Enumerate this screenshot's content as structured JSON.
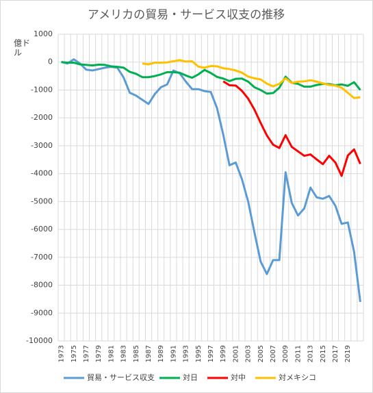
{
  "chart_data": {
    "type": "line",
    "title": "アメリカの貿易・サービス収支の推移",
    "y_label": "億ドル",
    "categories": [
      "1973",
      null,
      "1975",
      null,
      "1977",
      null,
      "1979",
      null,
      "1981",
      null,
      "1983",
      null,
      "1985",
      null,
      "1987",
      null,
      "1989",
      null,
      "1991",
      null,
      "1993",
      null,
      "1995",
      null,
      "1997",
      null,
      "1999",
      null,
      "2001",
      null,
      "2003",
      null,
      "2005",
      null,
      "2007",
      null,
      "2009",
      null,
      "2011",
      null,
      "2013",
      null,
      "2015",
      null,
      "2017",
      null,
      "2019",
      null,
      null
    ],
    "ylim": [
      -10000,
      1000
    ],
    "yticks": [
      1000,
      0,
      -1000,
      -2000,
      -3000,
      -4000,
      -5000,
      -6000,
      -7000,
      -8000,
      -9000,
      -10000
    ],
    "grid": true,
    "legend": "bottom",
    "series": [
      {
        "name": "貿易・サービス収支",
        "color": "#5b9bd5",
        "values": [
          10,
          -50,
          100,
          -50,
          -270,
          -300,
          -250,
          -200,
          -170,
          -200,
          -550,
          -1100,
          -1200,
          -1350,
          -1500,
          -1150,
          -900,
          -800,
          -300,
          -400,
          -700,
          -970,
          -970,
          -1040,
          -1070,
          -1650,
          -2600,
          -3700,
          -3600,
          -4200,
          -5000,
          -6100,
          -7150,
          -7600,
          -7100,
          -7100,
          -3950,
          -5050,
          -5500,
          -5250,
          -4500,
          -4850,
          -4900,
          -4800,
          -5150,
          -5800,
          -5750,
          -6800,
          -8600
        ]
      },
      {
        "name": "対日",
        "color": "#00b050",
        "values": [
          0,
          -20,
          -20,
          -80,
          -100,
          -120,
          -90,
          -100,
          -150,
          -170,
          -200,
          -350,
          -420,
          -540,
          -540,
          -500,
          -440,
          -360,
          -360,
          -380,
          -480,
          -560,
          -440,
          -280,
          -390,
          -530,
          -590,
          -680,
          -600,
          -590,
          -700,
          -900,
          -1000,
          -1130,
          -1110,
          -920,
          -520,
          -740,
          -780,
          -880,
          -880,
          -820,
          -780,
          -790,
          -830,
          -800,
          -850,
          -720,
          -1000
        ]
      },
      {
        "name": "対中",
        "color": "#ff0000",
        "values": [
          null,
          null,
          null,
          null,
          null,
          null,
          null,
          null,
          null,
          null,
          null,
          null,
          null,
          null,
          null,
          null,
          null,
          null,
          null,
          null,
          null,
          null,
          null,
          null,
          null,
          null,
          -690,
          -830,
          -840,
          -1030,
          -1310,
          -1700,
          -2180,
          -2630,
          -2960,
          -3080,
          -2620,
          -3040,
          -3200,
          -3360,
          -3310,
          -3490,
          -3660,
          -3360,
          -3600,
          -4080,
          -3350,
          -3130,
          -3650
        ]
      },
      {
        "name": "対メキシコ",
        "color": "#ffc000",
        "values": [
          null,
          null,
          null,
          null,
          null,
          null,
          null,
          null,
          null,
          null,
          null,
          null,
          null,
          -50,
          -80,
          -20,
          -20,
          -10,
          30,
          70,
          20,
          30,
          -160,
          -200,
          -140,
          -150,
          -220,
          -250,
          -300,
          -380,
          -520,
          -580,
          -620,
          -770,
          -870,
          -780,
          -580,
          -750,
          -700,
          -690,
          -650,
          -700,
          -760,
          -820,
          -840,
          -920,
          -1100,
          -1290,
          -1260
        ]
      }
    ]
  }
}
